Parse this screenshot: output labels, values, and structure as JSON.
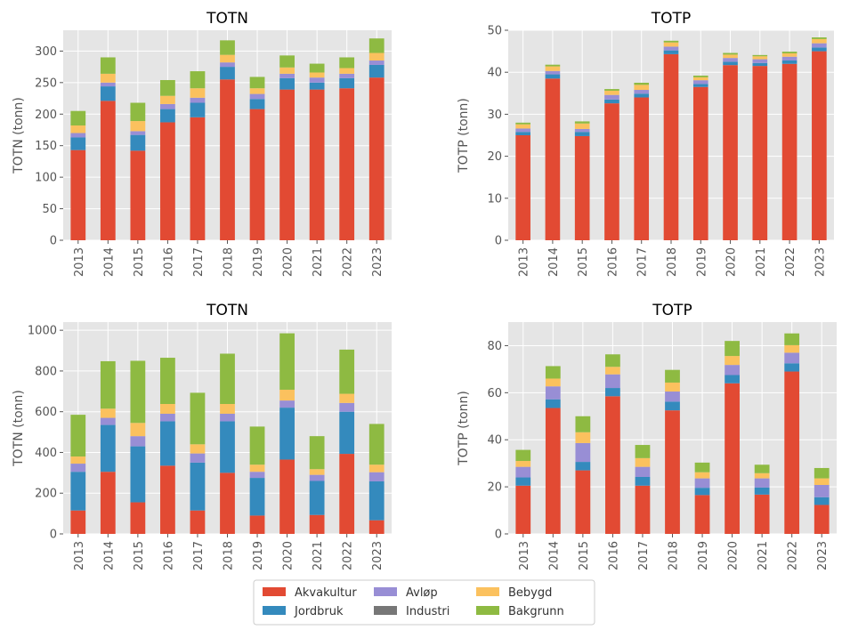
{
  "legend": {
    "placement": "bottom-center",
    "entries": [
      "Akvakultur",
      "Jordbruk",
      "Avløp",
      "Industri",
      "Bebygd",
      "Bakgrunn"
    ]
  },
  "colors": {
    "Akvakultur": "#E24A33",
    "Jordbruk": "#348ABD",
    "Avløp": "#988ED5",
    "Industri": "#777777",
    "Bebygd": "#FBC15E",
    "Bakgrunn": "#8EBA42",
    "background": "#E5E5E5",
    "grid": "#FFFFFF"
  },
  "chart_data": [
    {
      "type": "bar",
      "stacked": true,
      "title": "TOTN",
      "xlabel": "",
      "ylabel": "TOTN (tonn)",
      "ylim": [
        0,
        333
      ],
      "yticks": [
        0,
        50,
        100,
        150,
        200,
        250,
        300
      ],
      "grid": true,
      "categories": [
        "2013",
        "2014",
        "2015",
        "2016",
        "2017",
        "2018",
        "2019",
        "2020",
        "2021",
        "2022",
        "2023"
      ],
      "series": [
        {
          "name": "Akvakultur",
          "values": [
            143,
            221,
            142,
            187,
            195,
            255,
            208,
            239,
            239,
            241,
            258
          ]
        },
        {
          "name": "Jordbruk",
          "values": [
            20,
            23,
            25,
            21,
            23,
            20,
            16,
            18,
            11,
            16,
            20
          ]
        },
        {
          "name": "Avløp",
          "values": [
            7,
            6,
            6,
            8,
            8,
            7,
            8,
            7,
            8,
            7,
            7
          ]
        },
        {
          "name": "Industri",
          "values": [
            0,
            0,
            0,
            0,
            0,
            0,
            0,
            0,
            0,
            0,
            0
          ]
        },
        {
          "name": "Bebygd",
          "values": [
            12,
            14,
            16,
            13,
            15,
            12,
            9,
            10,
            8,
            9,
            12
          ]
        },
        {
          "name": "Bakgrunn",
          "values": [
            23,
            26,
            29,
            25,
            27,
            23,
            18,
            19,
            14,
            17,
            23
          ]
        }
      ]
    },
    {
      "type": "bar",
      "stacked": true,
      "title": "TOTP",
      "xlabel": "",
      "ylabel": "TOTP (tonn)",
      "ylim": [
        0,
        50
      ],
      "yticks": [
        0,
        10,
        20,
        30,
        40,
        50
      ],
      "grid": true,
      "categories": [
        "2013",
        "2014",
        "2015",
        "2016",
        "2017",
        "2018",
        "2019",
        "2020",
        "2021",
        "2022",
        "2023"
      ],
      "series": [
        {
          "name": "Akvakultur",
          "values": [
            25,
            38.5,
            24.8,
            32.6,
            34,
            44.3,
            36.5,
            41.7,
            41.5,
            42,
            45
          ]
        },
        {
          "name": "Jordbruk",
          "values": [
            0.8,
            1.0,
            1.0,
            0.9,
            0.9,
            0.9,
            0.7,
            0.8,
            0.7,
            0.8,
            0.9
          ]
        },
        {
          "name": "Avløp",
          "values": [
            0.8,
            0.8,
            0.7,
            1.1,
            0.9,
            0.9,
            0.9,
            0.9,
            0.9,
            0.9,
            1.0
          ]
        },
        {
          "name": "Industri",
          "values": [
            0,
            0,
            0,
            0,
            0,
            0,
            0,
            0,
            0,
            0,
            0
          ]
        },
        {
          "name": "Bebygd",
          "values": [
            1.0,
            1.1,
            1.3,
            1.0,
            1.2,
            1.0,
            0.7,
            0.8,
            0.7,
            0.8,
            1.0
          ]
        },
        {
          "name": "Bakgrunn",
          "values": [
            0.4,
            0.4,
            0.5,
            0.4,
            0.5,
            0.4,
            0.4,
            0.4,
            0.3,
            0.4,
            0.4
          ]
        }
      ]
    },
    {
      "type": "bar",
      "stacked": true,
      "title": "TOTN",
      "xlabel": "",
      "ylabel": "TOTN (tonn)",
      "ylim": [
        0,
        1040
      ],
      "yticks": [
        0,
        200,
        400,
        600,
        800,
        1000
      ],
      "grid": true,
      "categories": [
        "2013",
        "2014",
        "2015",
        "2016",
        "2017",
        "2018",
        "2019",
        "2020",
        "2021",
        "2022",
        "2023"
      ],
      "series": [
        {
          "name": "Akvakultur",
          "values": [
            115,
            305,
            155,
            335,
            115,
            300,
            90,
            365,
            93,
            393,
            67
          ]
        },
        {
          "name": "Jordbruk",
          "values": [
            190,
            230,
            275,
            218,
            235,
            253,
            185,
            255,
            167,
            207,
            191
          ]
        },
        {
          "name": "Avløp",
          "values": [
            40,
            35,
            50,
            37,
            45,
            37,
            30,
            35,
            30,
            43,
            45
          ]
        },
        {
          "name": "Industri",
          "values": [
            0,
            0,
            0,
            0,
            0,
            0,
            0,
            0,
            0,
            0,
            0
          ]
        },
        {
          "name": "Bebygd",
          "values": [
            35,
            45,
            65,
            48,
            45,
            48,
            35,
            53,
            28,
            45,
            37
          ]
        },
        {
          "name": "Bakgrunn",
          "values": [
            205,
            233,
            305,
            227,
            253,
            247,
            187,
            277,
            162,
            217,
            200
          ]
        }
      ]
    },
    {
      "type": "bar",
      "stacked": true,
      "title": "TOTP",
      "xlabel": "",
      "ylabel": "TOTP (tonn)",
      "ylim": [
        0,
        90
      ],
      "yticks": [
        0,
        20,
        40,
        60,
        80
      ],
      "grid": true,
      "categories": [
        "2013",
        "2014",
        "2015",
        "2016",
        "2017",
        "2018",
        "2019",
        "2020",
        "2021",
        "2022",
        "2023"
      ],
      "series": [
        {
          "name": "Akvakultur",
          "values": [
            20.5,
            53.5,
            27,
            58.5,
            20.5,
            52.5,
            16.5,
            64,
            16.7,
            69,
            12.3
          ]
        },
        {
          "name": "Jordbruk",
          "values": [
            3.5,
            3.7,
            3.6,
            3.5,
            3.7,
            3.7,
            3.1,
            3.5,
            3,
            3.5,
            3.3
          ]
        },
        {
          "name": "Avløp",
          "values": [
            4.5,
            5.5,
            8,
            5.8,
            4.3,
            4.3,
            4,
            4.3,
            3.9,
            4.5,
            5.2
          ]
        },
        {
          "name": "Industri",
          "values": [
            0,
            0,
            0,
            0,
            0,
            0,
            0,
            0,
            0,
            0,
            0
          ]
        },
        {
          "name": "Bebygd",
          "values": [
            2.5,
            3.3,
            4.6,
            3.2,
            3.7,
            3.8,
            2.6,
            3.8,
            2.2,
            3.2,
            2.8
          ]
        },
        {
          "name": "Bakgrunn",
          "values": [
            4.7,
            5.3,
            6.8,
            5.3,
            5.6,
            5.4,
            4.1,
            6.4,
            3.6,
            5,
            4.4
          ]
        }
      ]
    }
  ]
}
